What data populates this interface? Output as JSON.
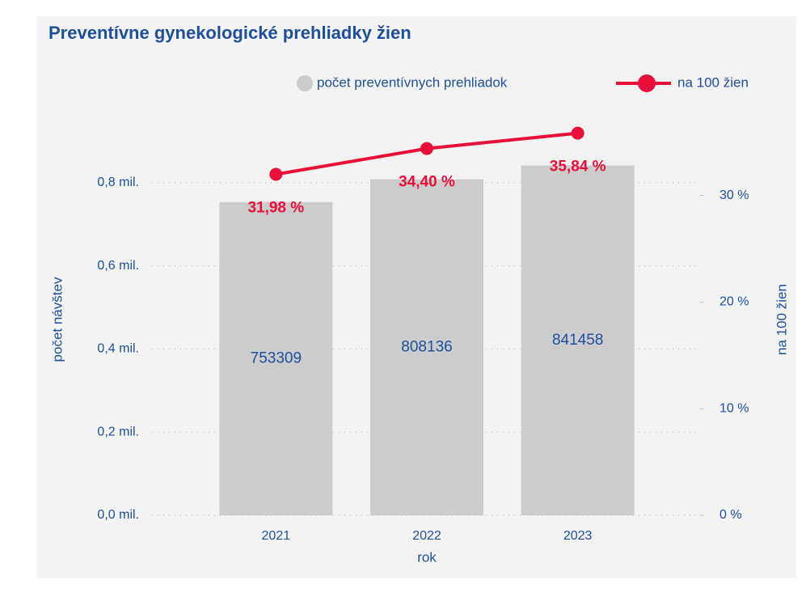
{
  "chart_data": {
    "type": "bar",
    "title": "Preventívne gynekologické prehliadky žien",
    "categories": [
      "2021",
      "2022",
      "2023"
    ],
    "xlabel": "rok",
    "ylabel": "počet návštev",
    "y2label": "na 100 žien",
    "series": [
      {
        "name": "počet preventívnych prehliadok",
        "type": "bar",
        "color": "#cccccc",
        "values": [
          753309,
          808136,
          841458
        ]
      },
      {
        "name": "na 100 žien",
        "type": "line",
        "axis": "y2",
        "color": "#e8103a",
        "values": [
          31.98,
          34.4,
          35.84
        ],
        "value_labels": [
          "31,98 %",
          "34,40 %",
          "35,84 %"
        ]
      }
    ],
    "ylim": [
      0,
      1000000
    ],
    "yticks": [
      {
        "value": 0,
        "label": "0,0 mil."
      },
      {
        "value": 200000,
        "label": "0,2 mil."
      },
      {
        "value": 400000,
        "label": "0,4 mil."
      },
      {
        "value": 600000,
        "label": "0,6 mil."
      },
      {
        "value": 800000,
        "label": "0,8 mil."
      }
    ],
    "y2lim": [
      0,
      39
    ],
    "y2ticks": [
      {
        "value": 0,
        "label": "0 %"
      },
      {
        "value": 10,
        "label": "10 %"
      },
      {
        "value": 20,
        "label": "20 %"
      },
      {
        "value": 30,
        "label": "30 %"
      }
    ],
    "grid": true
  }
}
